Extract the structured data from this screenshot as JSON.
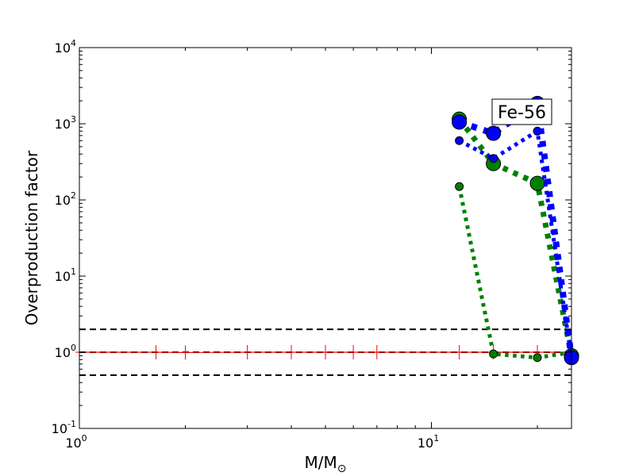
{
  "chart_data": {
    "type": "line",
    "xscale": "log",
    "yscale": "log",
    "xlim": [
      1,
      25
    ],
    "ylim": [
      0.1,
      10000
    ],
    "xticks": [
      {
        "value": 1,
        "base": "10",
        "exp": "0"
      },
      {
        "value": 10,
        "base": "10",
        "exp": "1"
      }
    ],
    "yticks": [
      {
        "value": 0.1,
        "base": "10",
        "exp": "-1"
      },
      {
        "value": 1,
        "base": "10",
        "exp": "0"
      },
      {
        "value": 10,
        "base": "10",
        "exp": "1"
      },
      {
        "value": 100,
        "base": "10",
        "exp": "2"
      },
      {
        "value": 1000,
        "base": "10",
        "exp": "3"
      },
      {
        "value": 10000,
        "base": "10",
        "exp": "4"
      }
    ],
    "xlabel_main": "M/M",
    "xlabel_sub": "⊙",
    "ylabel": "Overproduction factor",
    "annotation": "Fe-56",
    "reference_lines": [
      2,
      1,
      0.5
    ],
    "series": [
      {
        "color": "#ff0000",
        "style": "solid",
        "width": 1.2,
        "marker": "plus",
        "points": [
          [
            1,
            1
          ],
          [
            1.65,
            1
          ],
          [
            2,
            0.99
          ],
          [
            3,
            1
          ],
          [
            4,
            1
          ],
          [
            5,
            1
          ],
          [
            6,
            1
          ],
          [
            7,
            1
          ],
          [
            12,
            1
          ],
          [
            15,
            1
          ],
          [
            20,
            1
          ],
          [
            25,
            1
          ]
        ]
      },
      {
        "color": "#008000",
        "style": "dotted",
        "width": 5,
        "marker": "circle",
        "marker_r": 5,
        "points": [
          [
            12,
            150
          ],
          [
            15,
            0.95
          ],
          [
            20,
            0.85
          ],
          [
            25,
            1
          ]
        ]
      },
      {
        "color": "#008000",
        "style": "dotted",
        "width": 7,
        "marker": "circle",
        "marker_r": 9,
        "points": [
          [
            12,
            1150
          ],
          [
            15,
            300
          ],
          [
            20,
            165
          ],
          [
            25,
            0.9
          ]
        ]
      },
      {
        "color": "#0000ff",
        "style": "dotted",
        "width": 5,
        "marker": "circle",
        "marker_r": 5,
        "points": [
          [
            12,
            600
          ],
          [
            15,
            350
          ],
          [
            20,
            800
          ],
          [
            25,
            0.85
          ]
        ]
      },
      {
        "color": "#0000ff",
        "style": "dotted",
        "width": 8,
        "marker": "circle",
        "marker_r": 9,
        "points": [
          [
            12,
            1050
          ],
          [
            15,
            750
          ],
          [
            20,
            1850
          ],
          [
            25,
            0.85
          ]
        ]
      }
    ]
  }
}
